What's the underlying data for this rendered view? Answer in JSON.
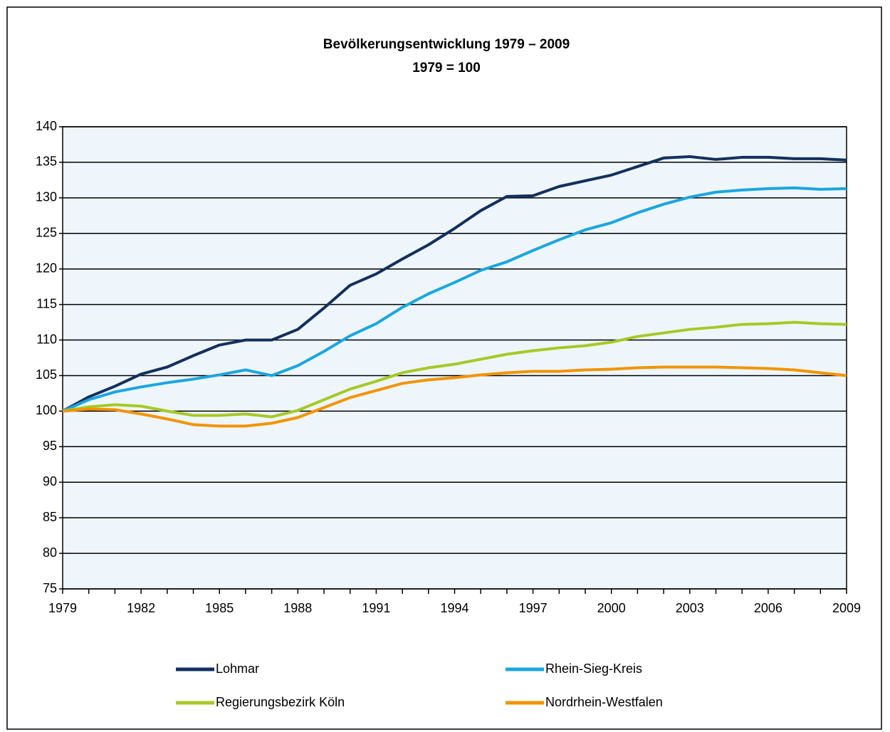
{
  "chart_data": {
    "type": "line",
    "title": "Bevölkerungsentwicklung 1979 – 2009",
    "subtitle": "1979 = 100",
    "x": [
      1979,
      1980,
      1981,
      1982,
      1983,
      1984,
      1985,
      1986,
      1987,
      1988,
      1989,
      1990,
      1991,
      1992,
      1993,
      1994,
      1995,
      1996,
      1997,
      1998,
      1999,
      2000,
      2001,
      2002,
      2003,
      2004,
      2005,
      2006,
      2007,
      2008,
      2009
    ],
    "xlim": [
      1979,
      2009
    ],
    "xticks": [
      1979,
      1982,
      1985,
      1988,
      1991,
      1994,
      1997,
      2000,
      2003,
      2006,
      2009
    ],
    "ylim": [
      75,
      140
    ],
    "yticks": [
      75,
      80,
      85,
      90,
      95,
      100,
      105,
      110,
      115,
      120,
      125,
      130,
      135,
      140
    ],
    "grid": true,
    "series": [
      {
        "name": "Lohmar",
        "color": "#12305e",
        "values": [
          100,
          102,
          103.5,
          105.2,
          106.2,
          107.8,
          109.3,
          110,
          110,
          111.5,
          114.5,
          117.7,
          119.3,
          121.4,
          123.4,
          125.7,
          128.2,
          130.2,
          130.3,
          131.6,
          132.4,
          133.2,
          134.4,
          135.6,
          135.8,
          135.4,
          135.7,
          135.7,
          135.5,
          135.5,
          135.3
        ]
      },
      {
        "name": "Rhein-Sieg-Kreis",
        "color": "#1ba6e0",
        "values": [
          100,
          101.6,
          102.7,
          103.4,
          104,
          104.5,
          105.1,
          105.8,
          105,
          106.4,
          108.4,
          110.6,
          112.3,
          114.6,
          116.5,
          118.1,
          119.8,
          121,
          122.6,
          124.1,
          125.5,
          126.5,
          127.9,
          129.1,
          130.1,
          130.8,
          131.1,
          131.3,
          131.4,
          131.2,
          131.3
        ]
      },
      {
        "name": "Regierungsbezirk Köln",
        "color": "#a8c825",
        "values": [
          100,
          100.6,
          100.9,
          100.7,
          100,
          99.4,
          99.4,
          99.6,
          99.2,
          100.1,
          101.6,
          103.1,
          104.2,
          105.4,
          106.1,
          106.6,
          107.3,
          108,
          108.5,
          108.9,
          109.2,
          109.7,
          110.5,
          111,
          111.5,
          111.8,
          112.2,
          112.3,
          112.5,
          112.3,
          112.2
        ]
      },
      {
        "name": "Nordrhein-Westfalen",
        "color": "#f29400",
        "values": [
          100,
          100.3,
          100.2,
          99.6,
          98.9,
          98.1,
          97.9,
          97.9,
          98.3,
          99.1,
          100.5,
          101.9,
          102.9,
          103.9,
          104.4,
          104.7,
          105.1,
          105.4,
          105.6,
          105.6,
          105.8,
          105.9,
          106.1,
          106.2,
          106.2,
          106.2,
          106.1,
          106,
          105.8,
          105.4,
          105
        ]
      }
    ]
  }
}
